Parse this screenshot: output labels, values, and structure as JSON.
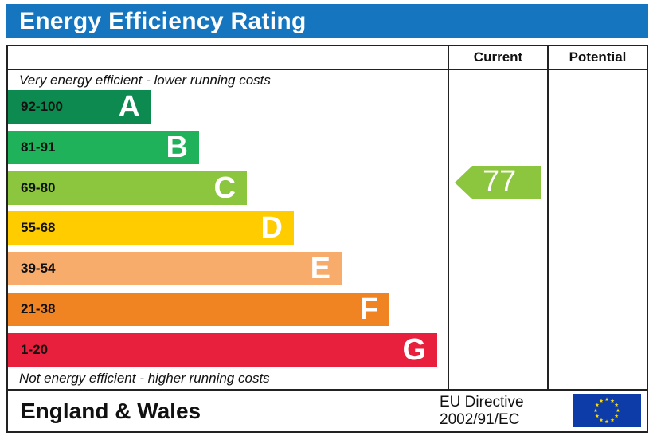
{
  "title": "Energy Efficiency Rating",
  "columns": {
    "current": "Current",
    "potential": "Potential"
  },
  "top_note": "Very energy efficient - lower running costs",
  "bottom_note": "Not energy efficient - higher running costs",
  "footer": {
    "region": "England & Wales",
    "directive_line1": "EU Directive",
    "directive_line2": "2002/91/EC"
  },
  "colors": {
    "header": "#1576bf",
    "A": "#0c8a4f",
    "B": "#1fb25a",
    "C": "#8cc63f",
    "D": "#ffcc00",
    "E": "#f7ac6b",
    "F": "#f08423",
    "G": "#e9203d",
    "eu_blue": "#0d3ca8",
    "eu_star": "#ffdd00"
  },
  "chart_data": {
    "type": "bar",
    "categories": [
      "A",
      "B",
      "C",
      "D",
      "E",
      "F",
      "G"
    ],
    "ranges": [
      "92-100",
      "81-91",
      "69-80",
      "55-68",
      "39-54",
      "21-38",
      "1-20"
    ],
    "current": {
      "value": "77",
      "band": "C"
    },
    "potential": null
  }
}
